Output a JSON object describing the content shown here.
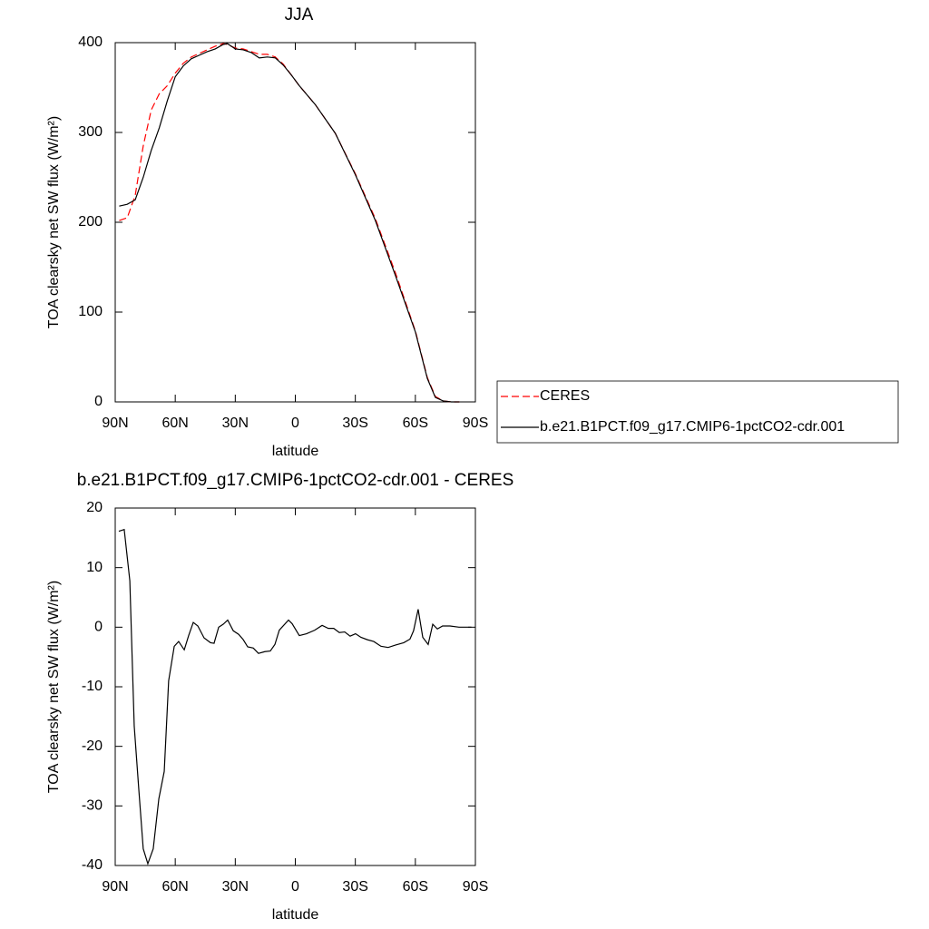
{
  "chart_data": [
    {
      "type": "line",
      "title": "JJA",
      "x_label": "latitude",
      "y_label": "TOA clearsky net SW flux (W/m²)",
      "x": [
        88,
        84,
        80,
        76,
        72,
        68,
        64,
        60,
        56,
        52,
        48,
        44,
        40,
        36,
        34,
        30,
        26,
        22,
        18,
        14,
        10,
        6,
        2,
        -2,
        -10,
        -20,
        -30,
        -40,
        -50,
        -60,
        -66,
        -70,
        -74,
        -78,
        -82
      ],
      "series": [
        {
          "name": "CERES",
          "color": "#ff0000",
          "dashed": true,
          "values": [
            202,
            205,
            230,
            285,
            325,
            343,
            352,
            366,
            377,
            384,
            388,
            392,
            396,
            399,
            398,
            394,
            393,
            390,
            387,
            387,
            384,
            376,
            364,
            352,
            331,
            299,
            254,
            204,
            144,
            79,
            27,
            6,
            1,
            0,
            0
          ]
        },
        {
          "name": "b.e21.B1PCT.f09_g17.CMIP6-1pctCO2-cdr.001",
          "color": "#000000",
          "dashed": false,
          "values": [
            218,
            220,
            225,
            250,
            280,
            305,
            335,
            362,
            374,
            382,
            386,
            390,
            393,
            398,
            399,
            393,
            392,
            389,
            383,
            384,
            383,
            375,
            364,
            352,
            331,
            299,
            253,
            202,
            141,
            78,
            26,
            5,
            1,
            0,
            0
          ]
        }
      ],
      "xlim": [
        90,
        -90
      ],
      "xticks": [
        {
          "value": 90,
          "label": "90N"
        },
        {
          "value": 60,
          "label": "60N"
        },
        {
          "value": 30,
          "label": "30N"
        },
        0,
        {
          "value": -30,
          "label": "30S"
        },
        {
          "value": -60,
          "label": "60S"
        },
        {
          "value": -90,
          "label": "90S"
        }
      ],
      "ylim": [
        0,
        400
      ],
      "yticks": [
        0,
        100,
        200,
        300,
        400
      ],
      "legend": "right"
    },
    {
      "type": "line",
      "title": "b.e21.B1PCT.f09_g17.CMIP6-1pctCO2-cdr.001 - CERES",
      "x_label": "latitude",
      "y_label": "TOA clearsky net SW flux (W/m²)",
      "x": [
        88.2,
        85.5,
        82.7,
        80.5,
        78.2,
        76,
        73.7,
        71,
        68.2,
        65.5,
        63.3,
        60.5,
        58.3,
        55.5,
        53.3,
        51,
        48.7,
        45.6,
        42.4,
        40.6,
        38.3,
        36,
        33.8,
        31,
        28.3,
        26,
        23.8,
        21,
        18.4,
        15.2,
        12.5,
        10.2,
        8,
        3.4,
        1.6,
        -2,
        -5.6,
        -9.7,
        -13.4,
        -16.5,
        -19.2,
        -22,
        -24.7,
        -27.4,
        -30.1,
        -32.8,
        -36,
        -39.2,
        -42.8,
        -46.4,
        -50,
        -54.2,
        -57.3,
        -59.1,
        -61.4,
        -63.7,
        -66.4,
        -68.7,
        -71,
        -73.6,
        -77.3,
        -81.8,
        -88
      ],
      "color": "#000000",
      "values": [
        16.1,
        16.4,
        7.8,
        -16.6,
        -27.3,
        -37.2,
        -39.7,
        -37.2,
        -28.8,
        -24.2,
        -9,
        -3.2,
        -2.4,
        -3.8,
        -1.4,
        0.8,
        0.2,
        -1.8,
        -2.6,
        -2.7,
        0,
        0.5,
        1.2,
        -0.6,
        -1.2,
        -2.1,
        -3.3,
        -3.5,
        -4.4,
        -4.1,
        -4,
        -2.9,
        -0.5,
        1.2,
        0.6,
        -1.4,
        -1.1,
        -0.5,
        0.3,
        -0.2,
        -0.2,
        -0.9,
        -0.8,
        -1.5,
        -1.1,
        -1.7,
        -2.1,
        -2.4,
        -3.2,
        -3.4,
        -3,
        -2.6,
        -2,
        -0.6,
        3,
        -1.7,
        -2.9,
        0.5,
        -0.3,
        0.2,
        0.2,
        0,
        0
      ],
      "xlim": [
        90,
        -90
      ],
      "xticks": [
        {
          "value": 90,
          "label": "90N"
        },
        {
          "value": 60,
          "label": "60N"
        },
        {
          "value": 30,
          "label": "30N"
        },
        0,
        {
          "value": -30,
          "label": "30S"
        },
        {
          "value": -60,
          "label": "60S"
        },
        {
          "value": -90,
          "label": "90S"
        }
      ],
      "ylim": [
        -40,
        20
      ],
      "yticks": [
        -40,
        -30,
        -20,
        -10,
        0,
        10,
        20
      ]
    }
  ]
}
